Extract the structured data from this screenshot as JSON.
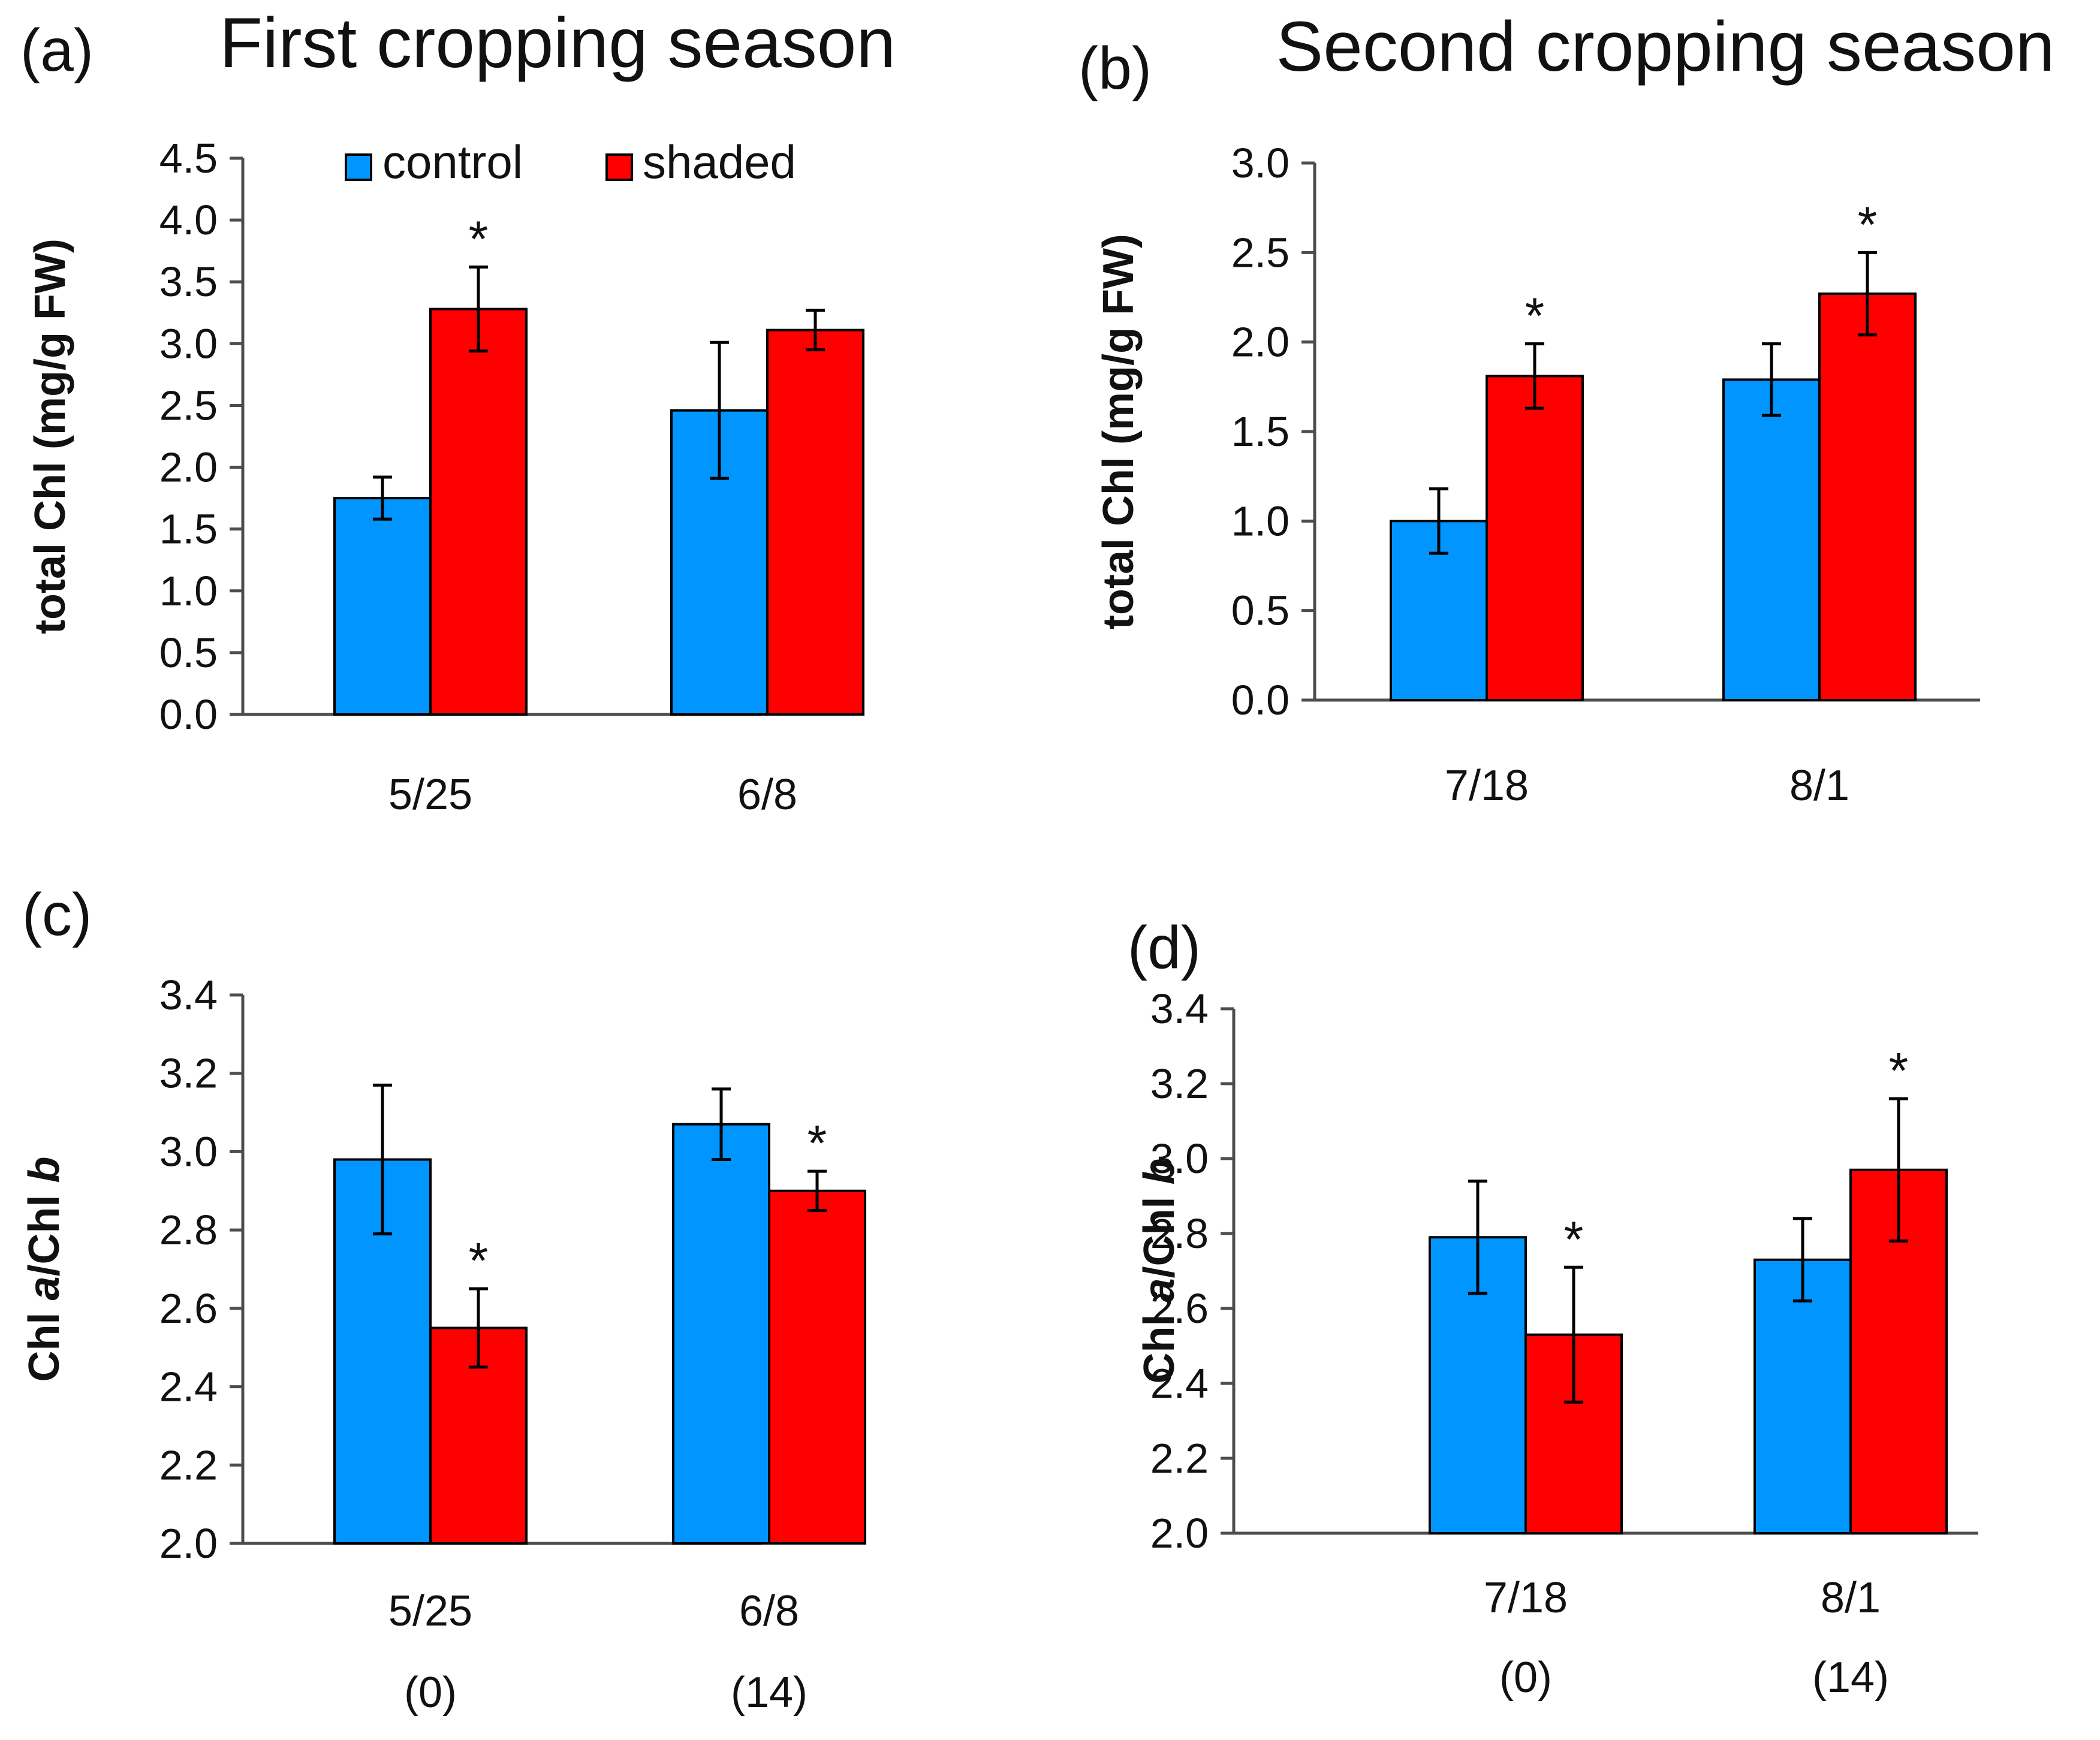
{
  "colors": {
    "control": "#0095ff",
    "shaded": "#ff0000",
    "axis": "#4d4d4d",
    "outline": "#000000"
  },
  "legend": {
    "control_label": "control",
    "shaded_label": "shaded"
  },
  "chart_data": [
    {
      "panel_label": "(a)",
      "title": "First cropping season",
      "type": "bar",
      "ylabel": "total Chl (mg/g FW)",
      "ylim": [
        0.0,
        4.5
      ],
      "yticks": [
        "0.0",
        "0.5",
        "1.0",
        "1.5",
        "2.0",
        "2.5",
        "3.0",
        "3.5",
        "4.0",
        "4.5"
      ],
      "categories": [
        "5/25",
        "6/8"
      ],
      "day_labels": [],
      "legend_shown": true,
      "series": [
        {
          "name": "control",
          "values": [
            1.75,
            2.46
          ],
          "errors": [
            0.17,
            0.55
          ],
          "significant": [
            false,
            false
          ]
        },
        {
          "name": "shaded",
          "values": [
            3.28,
            3.11
          ],
          "errors": [
            0.34,
            0.16
          ],
          "significant": [
            true,
            false
          ]
        }
      ]
    },
    {
      "panel_label": "(b)",
      "title": "Second cropping season",
      "type": "bar",
      "ylabel": "total Chl (mg/g FW)",
      "ylim": [
        0.0,
        3.0
      ],
      "yticks": [
        "0.0",
        "0.5",
        "1.0",
        "1.5",
        "2.0",
        "2.5",
        "3.0"
      ],
      "categories": [
        "7/18",
        "8/1"
      ],
      "day_labels": [],
      "legend_shown": false,
      "series": [
        {
          "name": "control",
          "values": [
            1.0,
            1.79
          ],
          "errors": [
            0.18,
            0.2
          ],
          "significant": [
            false,
            false
          ]
        },
        {
          "name": "shaded",
          "values": [
            1.81,
            2.27
          ],
          "errors": [
            0.18,
            0.23
          ],
          "significant": [
            true,
            true
          ]
        }
      ]
    },
    {
      "panel_label": "(c)",
      "title": "",
      "type": "bar",
      "ylabel": "Chl a/Chl b",
      "ylabel_parts": [
        "Chl ",
        "a",
        "/Chl ",
        "b"
      ],
      "ylim": [
        2.0,
        3.4
      ],
      "yticks": [
        "2.0",
        "2.2",
        "2.4",
        "2.6",
        "2.8",
        "3.0",
        "3.2",
        "3.4"
      ],
      "categories": [
        "5/25",
        "6/8"
      ],
      "day_labels": [
        "(0)",
        "(14)"
      ],
      "legend_shown": false,
      "series": [
        {
          "name": "control",
          "values": [
            2.98,
            3.07
          ],
          "errors": [
            0.19,
            0.09
          ],
          "significant": [
            false,
            false
          ]
        },
        {
          "name": "shaded",
          "values": [
            2.55,
            2.9
          ],
          "errors": [
            0.1,
            0.05
          ],
          "significant": [
            true,
            true
          ]
        }
      ]
    },
    {
      "panel_label": "(d)",
      "title": "",
      "type": "bar",
      "ylabel": "Chl a/Chl b",
      "ylabel_parts": [
        "Chl ",
        "a",
        "/Chl ",
        "b"
      ],
      "ylim": [
        2.0,
        3.4
      ],
      "yticks": [
        "2.0",
        "2.2",
        "2.4",
        "2.6",
        "2.8",
        "3.0",
        "3.2",
        "3.4"
      ],
      "categories": [
        "7/18",
        "8/1"
      ],
      "day_labels": [
        "(0)",
        "(14)"
      ],
      "legend_shown": false,
      "series": [
        {
          "name": "control",
          "values": [
            2.79,
            2.73
          ],
          "errors": [
            0.15,
            0.11
          ],
          "significant": [
            false,
            false
          ]
        },
        {
          "name": "shaded",
          "values": [
            2.53,
            2.97
          ],
          "errors": [
            0.18,
            0.19
          ],
          "significant": [
            true,
            true
          ]
        }
      ]
    }
  ]
}
